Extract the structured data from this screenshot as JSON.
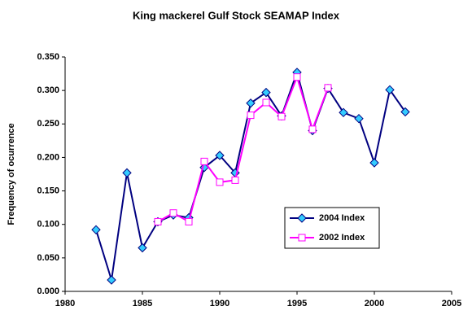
{
  "chart_data": {
    "type": "line",
    "title": "King mackerel Gulf Stock SEAMAP Index",
    "y_label": "Frequency of ocurrence",
    "xlim": [
      1980,
      2005
    ],
    "xticks": [
      1980,
      1985,
      1990,
      1995,
      2000,
      2005
    ],
    "ylim": [
      0,
      0.35
    ],
    "yticks": [
      {
        "value": 0,
        "label": "0.000"
      },
      {
        "value": 0.05,
        "label": "0.050"
      },
      {
        "value": 0.1,
        "label": "0.100"
      },
      {
        "value": 0.15,
        "label": "0.150"
      },
      {
        "value": 0.2,
        "label": "0.200"
      },
      {
        "value": 0.25,
        "label": "0.250"
      },
      {
        "value": 0.3,
        "label": "0.300"
      },
      {
        "value": 0.35,
        "label": "0.350"
      }
    ],
    "legend": "center-right",
    "series": [
      {
        "name": "2004 Index",
        "color": "#000080",
        "marker": "diamond",
        "marker_color": "#33ccff",
        "x": [
          1982,
          1983,
          1984,
          1985,
          1986,
          1987,
          1988,
          1989,
          1990,
          1991,
          1992,
          1993,
          1994,
          1995,
          1996,
          1997,
          1998,
          1999,
          2000,
          2001,
          2002
        ],
        "values": [
          0.092,
          0.017,
          0.177,
          0.065,
          0.104,
          0.114,
          0.11,
          0.185,
          0.203,
          0.177,
          0.281,
          0.297,
          0.262,
          0.327,
          0.24,
          0.303,
          0.267,
          0.258,
          0.192,
          0.301,
          0.268
        ]
      },
      {
        "name": "2002 Index",
        "color": "#ff00ff",
        "marker": "square",
        "marker_color": "#ffffff",
        "x": [
          1986,
          1987,
          1988,
          1989,
          1990,
          1991,
          1992,
          1993,
          1994,
          1995,
          1996,
          1997
        ],
        "values": [
          0.104,
          0.117,
          0.104,
          0.194,
          0.163,
          0.166,
          0.263,
          0.282,
          0.261,
          0.32,
          0.242,
          0.304
        ]
      }
    ]
  }
}
